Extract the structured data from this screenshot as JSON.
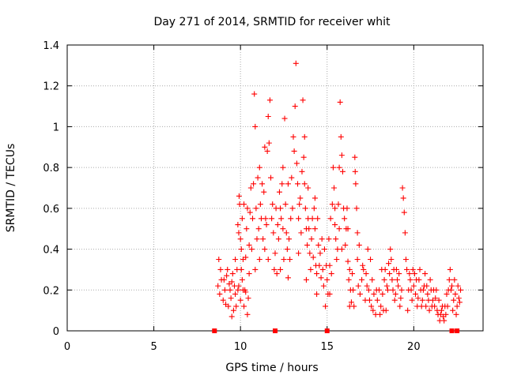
{
  "chart_data": {
    "type": "scatter",
    "title": "Day 271 of 2014, SRMTID for receiver whit",
    "xlabel": "GPS time / hours",
    "ylabel": "SRMTID / TECUs",
    "xlim": [
      0,
      24
    ],
    "ylim": [
      0,
      1.4
    ],
    "xticks": [
      0,
      5,
      10,
      15,
      20
    ],
    "xtick_labels": [
      "0",
      "5",
      "10",
      "15",
      "20"
    ],
    "yticks": [
      0,
      0.2,
      0.4,
      0.6,
      0.8,
      1.0,
      1.2,
      1.4
    ],
    "ytick_labels": [
      "0",
      "0.2",
      "0.4",
      "0.6",
      "0.8",
      "1",
      "1.2",
      "1.4"
    ],
    "grid": true,
    "marker": "+",
    "series_color": "#ff0000",
    "zero_markers_x": [
      8.5,
      12.0,
      15.0,
      22.2,
      22.5
    ],
    "series": [
      {
        "name": "SRMTID",
        "points": [
          [
            8.7,
            0.22
          ],
          [
            8.8,
            0.18
          ],
          [
            8.9,
            0.25
          ],
          [
            9.0,
            0.15
          ],
          [
            9.1,
            0.2
          ],
          [
            9.2,
            0.27
          ],
          [
            9.3,
            0.12
          ],
          [
            9.4,
            0.2
          ],
          [
            9.5,
            0.24
          ],
          [
            9.6,
            0.1
          ],
          [
            9.7,
            0.18
          ],
          [
            9.8,
            0.3
          ],
          [
            9.9,
            0.22
          ],
          [
            10.0,
            0.15
          ],
          [
            10.1,
            0.25
          ],
          [
            10.2,
            0.12
          ],
          [
            10.3,
            0.19
          ],
          [
            10.4,
            0.08
          ],
          [
            10.5,
            0.28
          ],
          [
            8.75,
            0.35
          ],
          [
            8.85,
            0.3
          ],
          [
            9.05,
            0.25
          ],
          [
            9.25,
            0.3
          ],
          [
            9.45,
            0.16
          ],
          [
            9.65,
            0.22
          ],
          [
            9.85,
            0.2
          ],
          [
            10.05,
            0.3
          ],
          [
            10.25,
            0.2
          ],
          [
            10.45,
            0.16
          ],
          [
            9.5,
            0.07
          ],
          [
            9.9,
            0.48
          ],
          [
            9.95,
            0.62
          ],
          [
            9.85,
            0.52
          ],
          [
            10.0,
            0.45
          ],
          [
            10.05,
            0.4
          ],
          [
            9.92,
            0.66
          ],
          [
            10.1,
            0.55
          ],
          [
            10.15,
            0.35
          ],
          [
            10.3,
            0.36
          ],
          [
            10.35,
            0.5
          ],
          [
            10.5,
            0.42
          ],
          [
            10.6,
            0.7
          ],
          [
            10.7,
            0.55
          ],
          [
            10.75,
            0.72
          ],
          [
            10.8,
            1.16
          ],
          [
            10.85,
            1.0
          ],
          [
            10.9,
            0.6
          ],
          [
            11.0,
            0.75
          ],
          [
            11.05,
            0.5
          ],
          [
            11.1,
            0.8
          ],
          [
            11.15,
            0.62
          ],
          [
            11.2,
            0.55
          ],
          [
            11.3,
            0.45
          ],
          [
            11.35,
            0.68
          ],
          [
            11.4,
            0.4
          ],
          [
            11.5,
            0.52
          ],
          [
            11.55,
            0.88
          ],
          [
            11.6,
            1.05
          ],
          [
            11.65,
            0.92
          ],
          [
            11.7,
            1.13
          ],
          [
            11.75,
            0.75
          ],
          [
            11.8,
            0.55
          ],
          [
            11.9,
            0.48
          ],
          [
            12.0,
            0.38
          ],
          [
            12.05,
            0.6
          ],
          [
            12.1,
            0.28
          ],
          [
            12.2,
            0.45
          ],
          [
            12.3,
            0.3
          ],
          [
            12.35,
            0.55
          ],
          [
            12.4,
            0.72
          ],
          [
            12.45,
            0.5
          ],
          [
            12.5,
            0.35
          ],
          [
            12.55,
            1.04
          ],
          [
            12.6,
            0.62
          ],
          [
            12.7,
            0.4
          ],
          [
            12.75,
            0.26
          ],
          [
            12.8,
            0.45
          ],
          [
            12.9,
            0.55
          ],
          [
            12.95,
            0.75
          ],
          [
            13.0,
            0.6
          ],
          [
            13.05,
            0.95
          ],
          [
            13.1,
            0.88
          ],
          [
            13.15,
            1.1
          ],
          [
            13.2,
            1.31
          ],
          [
            13.25,
            0.82
          ],
          [
            13.3,
            0.72
          ],
          [
            13.35,
            0.55
          ],
          [
            13.4,
            0.62
          ],
          [
            13.5,
            0.48
          ],
          [
            13.6,
            1.13
          ],
          [
            13.65,
            0.85
          ],
          [
            13.7,
            0.72
          ],
          [
            13.75,
            0.6
          ],
          [
            13.8,
            0.5
          ],
          [
            13.85,
            0.42
          ],
          [
            13.9,
            0.55
          ],
          [
            14.0,
            0.38
          ],
          [
            14.05,
            0.3
          ],
          [
            14.1,
            0.45
          ],
          [
            14.2,
            0.36
          ],
          [
            14.25,
            0.6
          ],
          [
            14.3,
            0.5
          ],
          [
            14.35,
            0.32
          ],
          [
            14.4,
            0.28
          ],
          [
            14.45,
            0.55
          ],
          [
            14.5,
            0.42
          ],
          [
            14.55,
            0.32
          ],
          [
            14.6,
            0.38
          ],
          [
            14.7,
            0.45
          ],
          [
            14.75,
            0.3
          ],
          [
            14.8,
            0.22
          ],
          [
            14.9,
            0.12
          ],
          [
            15.0,
            0.25
          ],
          [
            15.05,
            0.18
          ],
          [
            15.1,
            0.45
          ],
          [
            15.2,
            0.55
          ],
          [
            15.3,
            0.62
          ],
          [
            15.35,
            0.8
          ],
          [
            15.4,
            0.7
          ],
          [
            15.45,
            0.52
          ],
          [
            15.5,
            0.45
          ],
          [
            15.55,
            0.35
          ],
          [
            15.6,
            0.4
          ],
          [
            15.65,
            0.62
          ],
          [
            15.7,
            0.8
          ],
          [
            15.75,
            1.12
          ],
          [
            15.8,
            0.95
          ],
          [
            15.85,
            0.86
          ],
          [
            15.9,
            0.78
          ],
          [
            15.95,
            0.6
          ],
          [
            16.0,
            0.55
          ],
          [
            16.05,
            0.42
          ],
          [
            16.1,
            0.5
          ],
          [
            16.15,
            0.6
          ],
          [
            16.2,
            0.34
          ],
          [
            16.25,
            0.25
          ],
          [
            16.3,
            0.3
          ],
          [
            16.35,
            0.2
          ],
          [
            16.4,
            0.14
          ],
          [
            16.45,
            0.28
          ],
          [
            16.5,
            0.2
          ],
          [
            16.55,
            0.12
          ],
          [
            16.6,
            0.85
          ],
          [
            16.62,
            0.78
          ],
          [
            16.65,
            0.72
          ],
          [
            16.7,
            0.6
          ],
          [
            16.75,
            0.35
          ],
          [
            16.8,
            0.22
          ],
          [
            16.9,
            0.18
          ],
          [
            17.0,
            0.25
          ],
          [
            17.1,
            0.3
          ],
          [
            17.2,
            0.15
          ],
          [
            17.3,
            0.22
          ],
          [
            17.4,
            0.2
          ],
          [
            17.5,
            0.35
          ],
          [
            17.55,
            0.12
          ],
          [
            17.6,
            0.25
          ],
          [
            17.7,
            0.18
          ],
          [
            17.8,
            0.08
          ],
          [
            17.9,
            0.15
          ],
          [
            18.0,
            0.2
          ],
          [
            18.1,
            0.12
          ],
          [
            18.2,
            0.18
          ],
          [
            18.3,
            0.25
          ],
          [
            18.35,
            0.3
          ],
          [
            18.4,
            0.1
          ],
          [
            18.5,
            0.2
          ],
          [
            18.6,
            0.28
          ],
          [
            18.65,
            0.4
          ],
          [
            18.7,
            0.35
          ],
          [
            18.8,
            0.2
          ],
          [
            18.9,
            0.15
          ],
          [
            19.0,
            0.3
          ],
          [
            19.1,
            0.22
          ],
          [
            19.2,
            0.12
          ],
          [
            19.3,
            0.2
          ],
          [
            19.35,
            0.7
          ],
          [
            19.4,
            0.65
          ],
          [
            19.45,
            0.58
          ],
          [
            19.5,
            0.48
          ],
          [
            19.55,
            0.35
          ],
          [
            19.6,
            0.3
          ],
          [
            19.7,
            0.2
          ],
          [
            19.8,
            0.25
          ],
          [
            19.9,
            0.15
          ],
          [
            20.0,
            0.22
          ],
          [
            20.1,
            0.18
          ],
          [
            20.2,
            0.12
          ],
          [
            20.3,
            0.25
          ],
          [
            20.4,
            0.2
          ],
          [
            20.5,
            0.15
          ],
          [
            20.6,
            0.22
          ],
          [
            20.7,
            0.12
          ],
          [
            20.8,
            0.18
          ],
          [
            20.9,
            0.1
          ],
          [
            21.0,
            0.2
          ],
          [
            21.1,
            0.15
          ],
          [
            21.2,
            0.12
          ],
          [
            21.3,
            0.2
          ],
          [
            21.4,
            0.08
          ],
          [
            21.5,
            0.05
          ],
          [
            21.6,
            0.1
          ],
          [
            21.7,
            0.07
          ],
          [
            21.8,
            0.12
          ],
          [
            21.9,
            0.18
          ],
          [
            22.0,
            0.2
          ],
          [
            22.1,
            0.3
          ],
          [
            22.2,
            0.22
          ],
          [
            22.3,
            0.15
          ],
          [
            22.4,
            0.18
          ],
          [
            22.5,
            0.12
          ],
          [
            22.6,
            0.16
          ],
          [
            22.7,
            0.2
          ],
          [
            9.15,
            0.13
          ],
          [
            9.35,
            0.23
          ],
          [
            9.55,
            0.28
          ],
          [
            9.75,
            0.12
          ],
          [
            10.2,
            0.62
          ],
          [
            10.55,
            0.58
          ],
          [
            10.95,
            0.45
          ],
          [
            11.25,
            0.72
          ],
          [
            11.45,
            0.55
          ],
          [
            11.85,
            0.62
          ],
          [
            12.15,
            0.52
          ],
          [
            12.25,
            0.68
          ],
          [
            12.65,
            0.48
          ],
          [
            12.85,
            0.35
          ],
          [
            13.45,
            0.65
          ],
          [
            13.55,
            0.78
          ],
          [
            13.95,
            0.5
          ],
          [
            14.15,
            0.55
          ],
          [
            14.65,
            0.26
          ],
          [
            14.85,
            0.4
          ],
          [
            15.15,
            0.32
          ],
          [
            15.25,
            0.28
          ],
          [
            16.85,
            0.42
          ],
          [
            17.05,
            0.32
          ],
          [
            17.25,
            0.28
          ],
          [
            17.45,
            0.15
          ],
          [
            17.65,
            0.1
          ],
          [
            17.85,
            0.2
          ],
          [
            18.05,
            0.08
          ],
          [
            18.25,
            0.1
          ],
          [
            18.45,
            0.22
          ],
          [
            18.55,
            0.33
          ],
          [
            18.75,
            0.25
          ],
          [
            18.95,
            0.18
          ],
          [
            19.05,
            0.25
          ],
          [
            19.25,
            0.16
          ],
          [
            19.65,
            0.1
          ],
          [
            19.75,
            0.28
          ],
          [
            19.85,
            0.2
          ],
          [
            20.05,
            0.28
          ],
          [
            20.25,
            0.16
          ],
          [
            20.35,
            0.3
          ],
          [
            20.45,
            0.12
          ],
          [
            20.55,
            0.2
          ],
          [
            20.65,
            0.28
          ],
          [
            20.75,
            0.22
          ],
          [
            20.85,
            0.15
          ],
          [
            20.95,
            0.25
          ],
          [
            21.05,
            0.12
          ],
          [
            21.15,
            0.2
          ],
          [
            21.25,
            0.16
          ],
          [
            21.35,
            0.1
          ],
          [
            21.45,
            0.15
          ],
          [
            21.55,
            0.08
          ],
          [
            21.65,
            0.12
          ],
          [
            21.75,
            0.05
          ],
          [
            21.85,
            0.08
          ],
          [
            21.95,
            0.12
          ],
          [
            22.05,
            0.25
          ],
          [
            22.15,
            0.2
          ],
          [
            22.25,
            0.1
          ],
          [
            22.35,
            0.25
          ],
          [
            22.45,
            0.08
          ],
          [
            22.55,
            0.22
          ],
          [
            22.65,
            0.14
          ],
          [
            11.6,
            0.35
          ],
          [
            11.95,
            0.3
          ],
          [
            12.45,
            0.8
          ],
          [
            13.7,
            0.95
          ],
          [
            13.9,
            0.7
          ],
          [
            14.3,
            0.65
          ],
          [
            15.45,
            0.6
          ],
          [
            15.7,
            0.5
          ],
          [
            15.85,
            0.4
          ],
          [
            16.2,
            0.5
          ],
          [
            10.4,
            0.6
          ],
          [
            10.65,
            0.4
          ],
          [
            11.1,
            0.35
          ],
          [
            11.4,
            0.9
          ],
          [
            12.3,
            0.6
          ],
          [
            12.75,
            0.72
          ],
          [
            13.35,
            0.38
          ],
          [
            13.8,
            0.25
          ],
          [
            14.4,
            0.18
          ],
          [
            14.95,
            0.32
          ],
          [
            15.15,
            0.18
          ],
          [
            16.3,
            0.12
          ],
          [
            16.75,
            0.48
          ],
          [
            17.35,
            0.4
          ],
          [
            18.15,
            0.3
          ],
          [
            18.85,
            0.3
          ],
          [
            19.15,
            0.28
          ],
          [
            19.95,
            0.3
          ],
          [
            20.15,
            0.25
          ],
          [
            10.15,
            0.2
          ],
          [
            9.7,
            0.35
          ],
          [
            10.85,
            0.3
          ]
        ]
      }
    ]
  }
}
